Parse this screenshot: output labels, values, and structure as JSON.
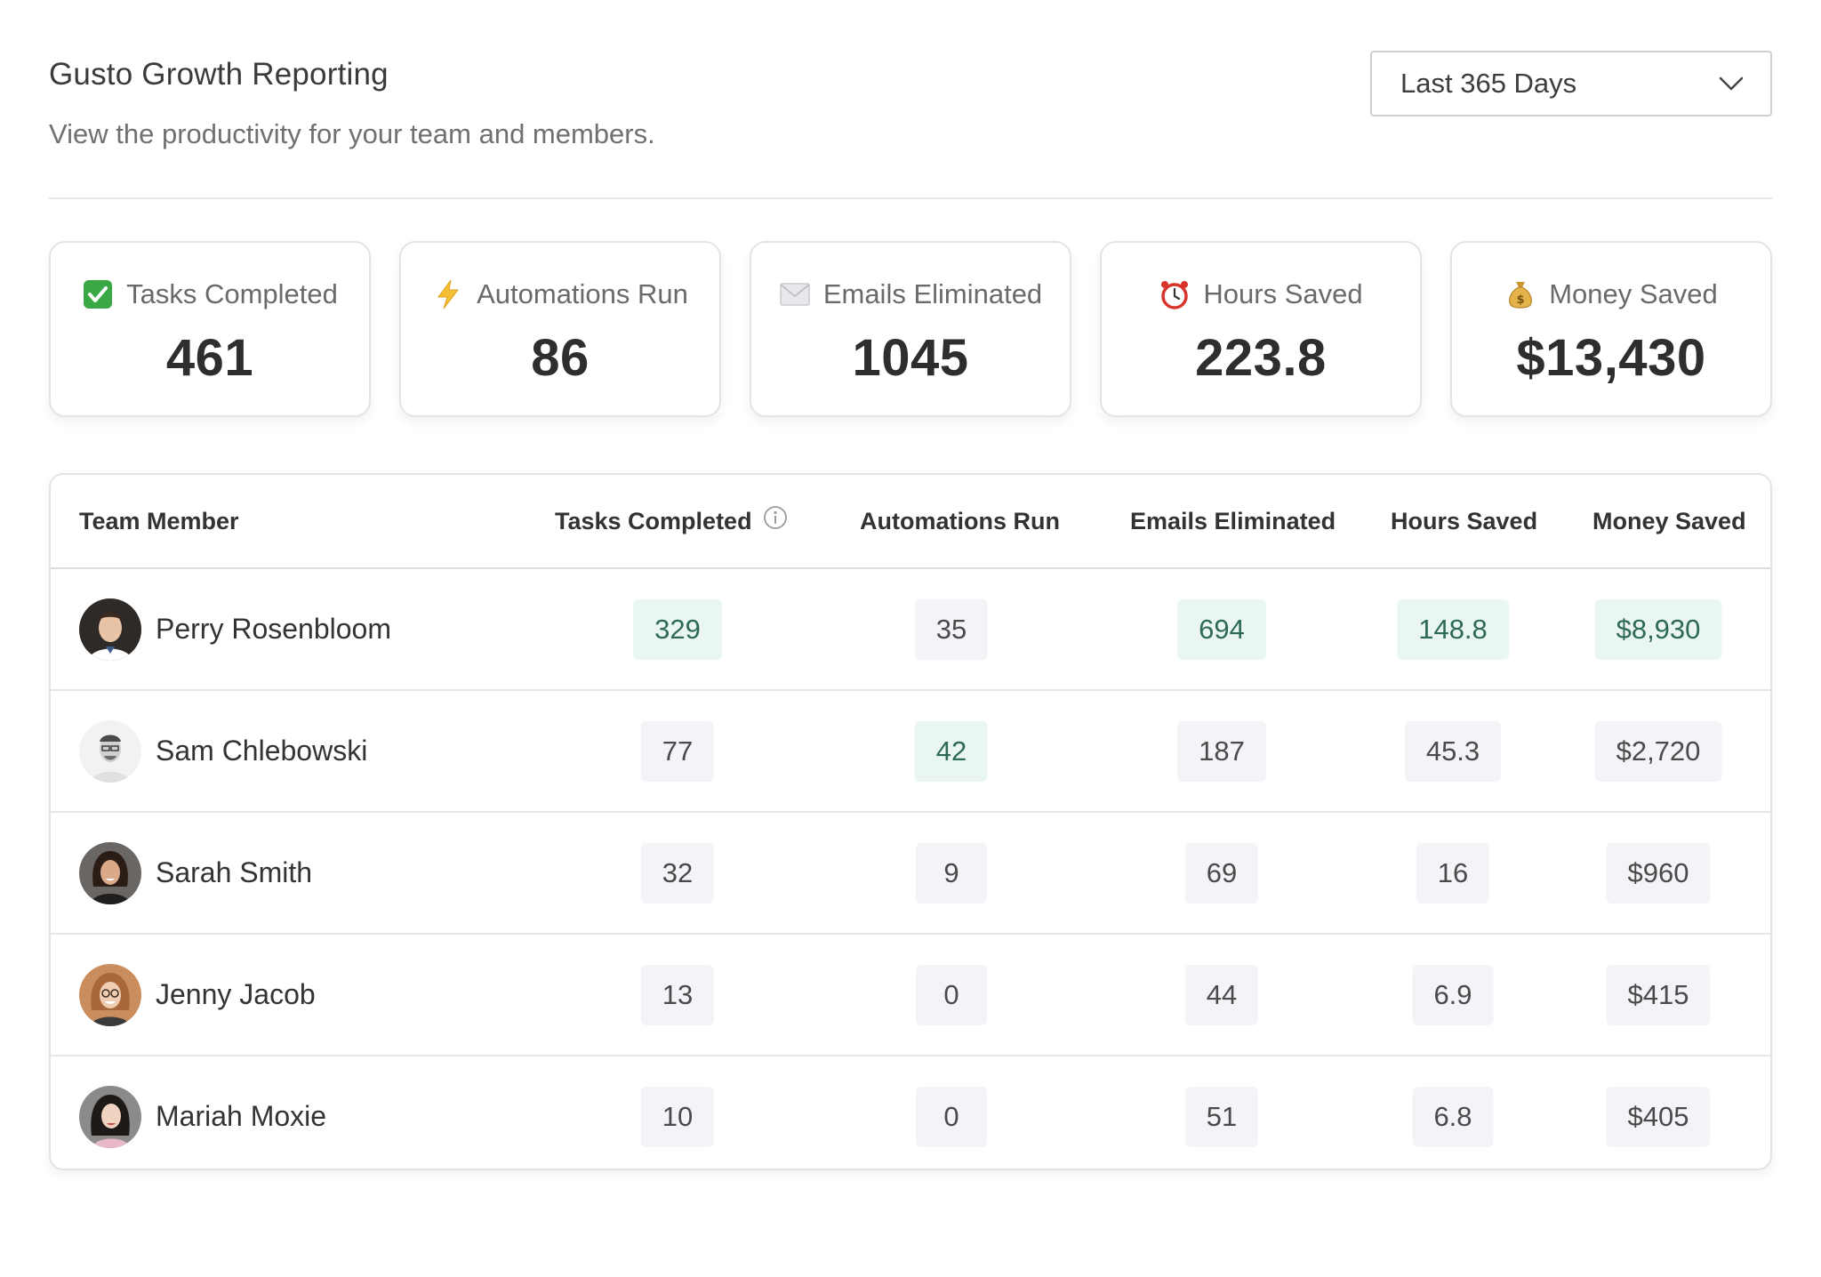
{
  "header": {
    "title": "Gusto Growth Reporting",
    "subtitle": "View the productivity for your team and members.",
    "range_select": {
      "value": "Last 365 Days"
    }
  },
  "stats": [
    {
      "icon": "check-mark-icon",
      "label": "Tasks Completed",
      "value": "461"
    },
    {
      "icon": "lightning-icon",
      "label": "Automations Run",
      "value": "86"
    },
    {
      "icon": "envelope-icon",
      "label": "Emails Eliminated",
      "value": "1045"
    },
    {
      "icon": "alarm-clock-icon",
      "label": "Hours Saved",
      "value": "223.8"
    },
    {
      "icon": "money-bag-icon",
      "label": "Money Saved",
      "value": "$13,430"
    }
  ],
  "table": {
    "columns": [
      "Team Member",
      "Tasks Completed",
      "Automations Run",
      "Emails Eliminated",
      "Hours Saved",
      "Money Saved"
    ],
    "rows": [
      {
        "name": "Perry Rosenbloom",
        "tasks": "329",
        "automations": "35",
        "emails": "694",
        "hours": "148.8",
        "money": "$8,930"
      },
      {
        "name": "Sam Chlebowski",
        "tasks": "77",
        "automations": "42",
        "emails": "187",
        "hours": "45.3",
        "money": "$2,720"
      },
      {
        "name": "Sarah Smith",
        "tasks": "32",
        "automations": "9",
        "emails": "69",
        "hours": "16",
        "money": "$960"
      },
      {
        "name": "Jenny Jacob",
        "tasks": "13",
        "automations": "0",
        "emails": "44",
        "hours": "6.9",
        "money": "$415"
      },
      {
        "name": "Mariah Moxie",
        "tasks": "10",
        "automations": "0",
        "emails": "51",
        "hours": "6.8",
        "money": "$405"
      }
    ]
  },
  "colors": {
    "highlight_bg": "#eaf7f1",
    "highlight_text": "#2f6a57",
    "pill_bg": "#f4f4f8",
    "border": "#e4e4e8"
  }
}
